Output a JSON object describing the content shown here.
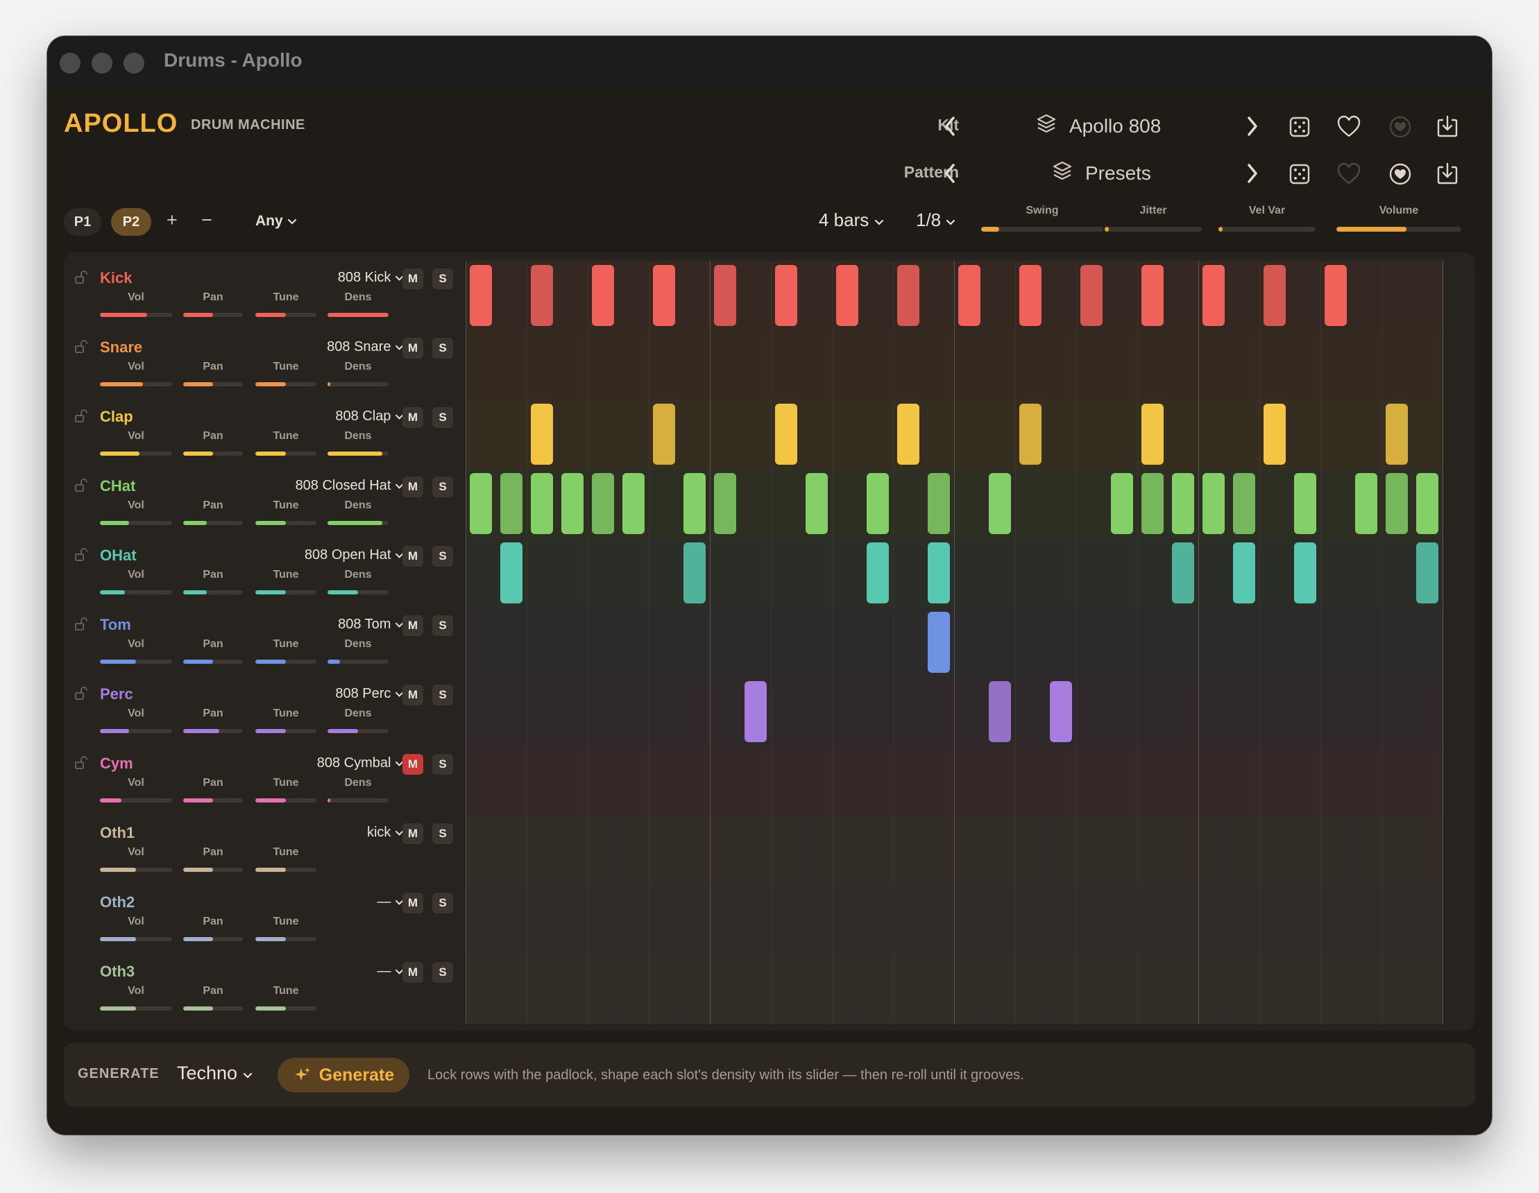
{
  "window": {
    "title": "Drums - Apollo"
  },
  "brand": {
    "name": "APOLLO",
    "subtitle": "DRUM MACHINE"
  },
  "kit": {
    "label": "Kit",
    "name": "Apollo 808"
  },
  "pattern": {
    "label": "Pattern",
    "name": "Presets"
  },
  "pattern_slots": [
    {
      "label": "P1",
      "active": false
    },
    {
      "label": "P2",
      "active": true
    }
  ],
  "toolbar": {
    "add_symbol": "+",
    "remove_symbol": "−",
    "filter_value": "Any",
    "bars_value": "4 bars",
    "resolution_value": "1/8"
  },
  "global_knobs": [
    {
      "label": "Swing",
      "value": 0.15,
      "color": "#e9a23c"
    },
    {
      "label": "Jitter",
      "value": 0.02,
      "color": "#e9a23c"
    },
    {
      "label": "Vel Var",
      "value": 0.02,
      "color": "#e9a23c"
    },
    {
      "label": "Volume",
      "value": 0.56,
      "color": "#e9a23c"
    }
  ],
  "slider_labels": {
    "vol": "Vol",
    "pan": "Pan",
    "tune": "Tune",
    "dens": "Dens"
  },
  "mute_label": "M",
  "solo_label": "S",
  "tracks": [
    {
      "name": "Kick",
      "color": "#f06259",
      "sample": "808 Kick",
      "locked": true,
      "muted": false,
      "vol": 0.65,
      "pan": 0.5,
      "tune": 0.5,
      "dens": 1.0,
      "steps": [
        0,
        2,
        4,
        6,
        8,
        10,
        12,
        14,
        16,
        18,
        20,
        22,
        24,
        26,
        28
      ]
    },
    {
      "name": "Snare",
      "color": "#f0934a",
      "sample": "808 Snare",
      "locked": true,
      "muted": false,
      "vol": 0.6,
      "pan": 0.5,
      "tune": 0.5,
      "dens": 0.03,
      "steps": []
    },
    {
      "name": "Clap",
      "color": "#f2c544",
      "sample": "808 Clap",
      "locked": true,
      "muted": false,
      "vol": 0.55,
      "pan": 0.5,
      "tune": 0.5,
      "dens": 0.9,
      "steps": [
        2,
        6,
        10,
        14,
        18,
        22,
        26,
        30
      ]
    },
    {
      "name": "CHat",
      "color": "#84cf68",
      "sample": "808 Closed Hat",
      "locked": true,
      "muted": false,
      "vol": 0.4,
      "pan": 0.4,
      "tune": 0.5,
      "dens": 0.9,
      "steps": [
        0,
        1,
        2,
        3,
        4,
        5,
        7,
        8,
        11,
        13,
        15,
        17,
        21,
        22,
        23,
        24,
        25,
        27,
        29,
        30,
        31
      ]
    },
    {
      "name": "OHat",
      "color": "#58c9b0",
      "sample": "808 Open Hat",
      "locked": true,
      "muted": false,
      "vol": 0.35,
      "pan": 0.4,
      "tune": 0.5,
      "dens": 0.5,
      "steps": [
        1,
        7,
        13,
        15,
        23,
        25,
        27,
        31
      ]
    },
    {
      "name": "Tom",
      "color": "#6f93e2",
      "sample": "808 Tom",
      "locked": true,
      "muted": false,
      "vol": 0.5,
      "pan": 0.5,
      "tune": 0.5,
      "dens": 0.2,
      "steps": [
        15
      ]
    },
    {
      "name": "Perc",
      "color": "#a77de0",
      "sample": "808 Perc",
      "locked": true,
      "muted": false,
      "vol": 0.4,
      "pan": 0.6,
      "tune": 0.5,
      "dens": 0.5,
      "steps": [
        9,
        17,
        19
      ]
    },
    {
      "name": "Cym",
      "color": "#e66fb2",
      "sample": "808 Cymbal",
      "locked": true,
      "muted": true,
      "vol": 0.3,
      "pan": 0.5,
      "tune": 0.5,
      "dens": 0.03,
      "steps": []
    },
    {
      "name": "Oth1",
      "color": "#c9b69a",
      "sample": "kick",
      "locked": false,
      "muted": false,
      "vol": 0.5,
      "pan": 0.5,
      "tune": 0.5,
      "dens": null,
      "steps": []
    },
    {
      "name": "Oth2",
      "color": "#9fb0c8",
      "sample": "—",
      "locked": false,
      "muted": false,
      "vol": 0.5,
      "pan": 0.5,
      "tune": 0.5,
      "dens": null,
      "steps": []
    },
    {
      "name": "Oth3",
      "color": "#a7c09b",
      "sample": "—",
      "locked": false,
      "muted": false,
      "vol": 0.5,
      "pan": 0.5,
      "tune": 0.5,
      "dens": null,
      "steps": []
    }
  ],
  "generate": {
    "label": "GENERATE",
    "style": "Techno",
    "button_label": "Generate",
    "hint": "Lock rows with the padlock, shape each slot's density with its slider — then re-roll until it grooves."
  },
  "icons": {
    "prev": "chevron-left-icon",
    "next": "chevron-right-icon",
    "layers": "layers-icon",
    "random": "dice-icon",
    "favorite": "heart-icon",
    "favorite_filled": "heart-circle-icon",
    "save": "save-download-icon",
    "lock": "padlock-icon",
    "sparkle": "sparkle-icon",
    "dropdown": "chevron-down-icon"
  }
}
